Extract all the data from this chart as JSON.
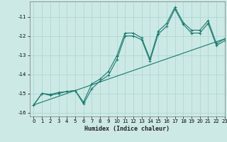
{
  "xlabel": "Humidex (Indice chaleur)",
  "xlim": [
    -0.5,
    23
  ],
  "ylim": [
    -16.2,
    -10.2
  ],
  "yticks": [
    -16,
    -15,
    -14,
    -13,
    -12,
    -11
  ],
  "xticks": [
    0,
    1,
    2,
    3,
    4,
    5,
    6,
    7,
    8,
    9,
    10,
    11,
    12,
    13,
    14,
    15,
    16,
    17,
    18,
    19,
    20,
    21,
    22,
    23
  ],
  "bg_color": "#cce9e5",
  "grid_color": "#aad4d0",
  "line_color": "#1a7a6e",
  "line1_x": [
    0,
    1,
    2,
    3,
    4,
    5,
    6,
    7,
    8,
    9,
    10,
    11,
    12,
    13,
    14,
    15,
    16,
    17,
    18,
    19,
    20,
    21,
    22,
    23
  ],
  "line1_y": [
    -15.6,
    -15.0,
    -15.1,
    -15.0,
    -14.9,
    -14.85,
    -15.55,
    -14.75,
    -14.35,
    -14.05,
    -13.25,
    -12.0,
    -12.0,
    -12.2,
    -13.3,
    -11.9,
    -11.5,
    -10.6,
    -11.4,
    -11.85,
    -11.85,
    -11.35,
    -12.5,
    -12.25
  ],
  "line2_x": [
    0,
    1,
    2,
    3,
    4,
    5,
    6,
    7,
    8,
    9,
    10,
    11,
    12,
    13,
    14,
    15,
    16,
    17,
    18,
    19,
    20,
    21,
    22,
    23
  ],
  "line2_y": [
    -15.6,
    -15.0,
    -15.05,
    -14.95,
    -14.9,
    -14.85,
    -15.45,
    -14.5,
    -14.25,
    -13.85,
    -13.05,
    -11.85,
    -11.85,
    -12.1,
    -13.2,
    -11.75,
    -11.35,
    -10.5,
    -11.3,
    -11.7,
    -11.7,
    -11.2,
    -12.4,
    -12.15
  ],
  "line3_x": [
    0,
    23
  ],
  "line3_y": [
    -15.6,
    -12.15
  ]
}
